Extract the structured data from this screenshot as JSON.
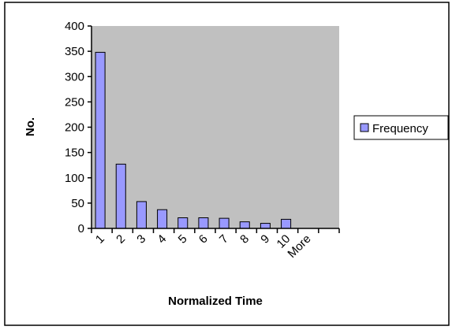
{
  "chart_data": {
    "type": "bar",
    "categories": [
      "1",
      "2",
      "3",
      "4",
      "5",
      "6",
      "7",
      "8",
      "9",
      "10",
      "More"
    ],
    "series": [
      {
        "name": "Frequency",
        "values": [
          348,
          127,
          53,
          37,
          21,
          21,
          20,
          13,
          10,
          18,
          0
        ]
      }
    ],
    "xlabel": "Normalized Time",
    "ylabel": "No.",
    "ylim": [
      0,
      400
    ],
    "yticks": [
      "0",
      "50",
      "100",
      "150",
      "200",
      "250",
      "300",
      "350",
      "400"
    ],
    "grid": false,
    "legend": "right",
    "colors": {
      "plot_background": "#c0c0c0",
      "bar_fill": "#9999ff",
      "bar_stroke": "#000000",
      "frame": "#000000"
    }
  }
}
